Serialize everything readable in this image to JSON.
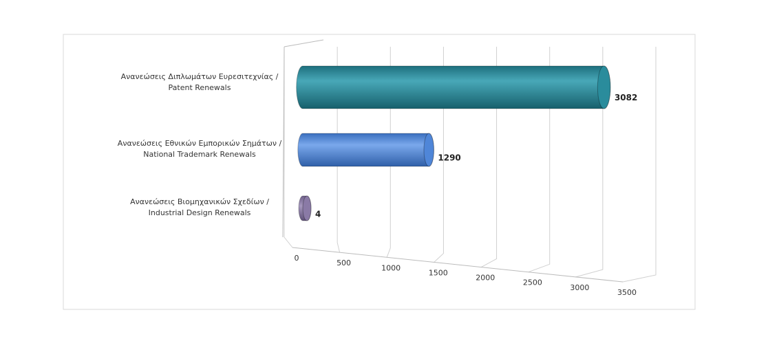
{
  "chart_data": {
    "type": "bar3d",
    "categories": [
      [
        "Ανανεώσεις Διπλωμάτων Ευρεσιτεχνίας /",
        "Patent Renewals"
      ],
      [
        "Ανανεώσεις Εθνικών Εμπορικών Σημάτων /",
        "National Trademark Renewals"
      ],
      [
        "Ανανεώσεις Βιομηχανικών Σχεδίων /",
        "Industrial Design Renewals"
      ]
    ],
    "values": [
      3082,
      1290,
      4
    ],
    "colors": [
      "#2a8c9c",
      "#4f86d8",
      "#8a7aa6"
    ],
    "xlim": [
      0,
      3500
    ],
    "xticks": [
      0,
      500,
      1000,
      1500,
      2000,
      2500,
      3000,
      3500
    ],
    "grid": true
  }
}
